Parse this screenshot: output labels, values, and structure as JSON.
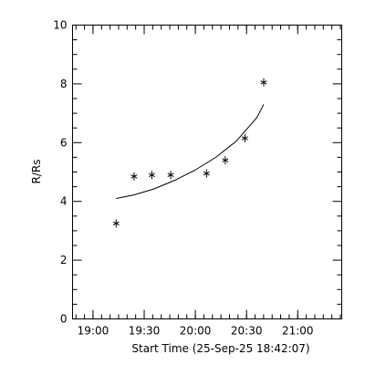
{
  "chart_data": {
    "type": "scatter",
    "title": "",
    "xlabel": "Start Time (25-Sep-25 18:42:07)",
    "ylabel": "R/Rs",
    "x_tick_labels": [
      "19:00",
      "19:30",
      "20:00",
      "20:30",
      "21:00"
    ],
    "x_tick_values": [
      19.0,
      19.5,
      20.0,
      20.5,
      21.0
    ],
    "xlim": [
      18.8,
      21.43
    ],
    "ylim": [
      0,
      10
    ],
    "y_ticks": [
      0,
      2,
      4,
      6,
      8,
      10
    ],
    "series": [
      {
        "marker": "asterisk",
        "x": [
          19.226,
          19.401,
          19.575,
          19.759,
          20.109,
          20.292,
          20.484,
          20.668
        ],
        "y": [
          3.25,
          4.85,
          4.9,
          4.9,
          4.95,
          5.4,
          6.15,
          8.05
        ]
      }
    ],
    "fit": {
      "type": "curve",
      "x": [
        19.226,
        19.4,
        19.6,
        19.8,
        20.0,
        20.2,
        20.4,
        20.6,
        20.668
      ],
      "y": [
        4.1,
        4.22,
        4.43,
        4.72,
        5.07,
        5.5,
        6.05,
        6.85,
        7.3
      ]
    },
    "grid": false
  }
}
